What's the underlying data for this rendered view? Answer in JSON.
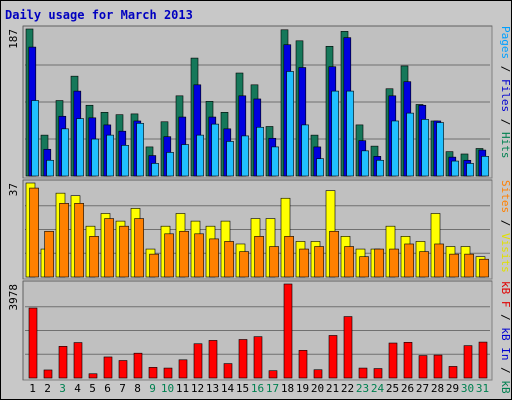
{
  "title": "Daily usage for March 2013",
  "chart_data": [
    {
      "type": "bar",
      "panel": "top",
      "max_label": "187",
      "ylim": [
        0,
        187
      ],
      "grid": true,
      "categories": [
        "1",
        "2",
        "3",
        "4",
        "5",
        "6",
        "7",
        "8",
        "9",
        "10",
        "11",
        "12",
        "13",
        "14",
        "15",
        "16",
        "17",
        "18",
        "19",
        "20",
        "21",
        "22",
        "23",
        "24",
        "25",
        "26",
        "27",
        "28",
        "29",
        "30",
        "31"
      ],
      "weekend_days": [
        "3",
        "9",
        "10",
        "16",
        "17",
        "23",
        "24",
        "30",
        "31"
      ],
      "side_labels": [
        {
          "text": "Pages",
          "color": "#00a0ff"
        },
        {
          "text": " / ",
          "color": "#000000"
        },
        {
          "text": "Files",
          "color": "#0000d0"
        },
        {
          "text": " / ",
          "color": "#000000"
        },
        {
          "text": "Hits",
          "color": "#008050"
        }
      ],
      "series": [
        {
          "name": "Hits",
          "color": "#16785a",
          "values": [
            187,
            52,
            96,
            127,
            90,
            81,
            78,
            79,
            37,
            69,
            102,
            150,
            95,
            81,
            131,
            116,
            63,
            186,
            172,
            52,
            165,
            184,
            65,
            38,
            111,
            140,
            91,
            70,
            31,
            28,
            35
          ]
        },
        {
          "name": "Files",
          "color": "#0000e0",
          "values": [
            164,
            34,
            76,
            108,
            74,
            65,
            57,
            70,
            26,
            50,
            75,
            116,
            75,
            60,
            102,
            98,
            48,
            167,
            138,
            37,
            139,
            176,
            45,
            25,
            102,
            120,
            90,
            70,
            24,
            20,
            33
          ]
        },
        {
          "name": "Pages",
          "color": "#20c0ff",
          "values": [
            96,
            20,
            60,
            73,
            47,
            52,
            39,
            67,
            16,
            30,
            40,
            52,
            66,
            44,
            51,
            62,
            37,
            133,
            65,
            22,
            108,
            108,
            32,
            20,
            70,
            80,
            72,
            68,
            19,
            16,
            25
          ]
        }
      ]
    },
    {
      "type": "bar",
      "panel": "middle",
      "max_label": "37",
      "ylim": [
        0,
        37
      ],
      "grid": true,
      "side_labels": [
        {
          "text": "Sites",
          "color": "#ff8000"
        },
        {
          "text": " / ",
          "color": "#000000"
        },
        {
          "text": "Visits",
          "color": "#e0e000"
        }
      ],
      "series": [
        {
          "name": "Visits",
          "color": "#ffff00",
          "values": [
            37,
            11,
            33,
            32,
            20,
            25,
            22,
            27,
            11,
            20,
            25,
            22,
            20,
            22,
            13,
            23,
            23,
            31,
            14,
            14,
            34,
            16,
            11,
            11,
            20,
            16,
            14,
            25,
            12,
            12,
            8
          ]
        },
        {
          "name": "Sites",
          "color": "#ff8000",
          "values": [
            35,
            18,
            29,
            29,
            16,
            23,
            20,
            23,
            9,
            17,
            18,
            17,
            15,
            14,
            10,
            16,
            12,
            16,
            11,
            12,
            18,
            12,
            8,
            11,
            11,
            13,
            10,
            13,
            9,
            9,
            7
          ]
        }
      ]
    },
    {
      "type": "bar",
      "panel": "bottom",
      "max_label": "3978",
      "ylim": [
        0,
        3978
      ],
      "grid": true,
      "side_labels": [
        {
          "text": "kB F",
          "color": "#e00000"
        },
        {
          "text": " / ",
          "color": "#000000"
        },
        {
          "text": "kB In",
          "color": "#0000d0"
        },
        {
          "text": " / ",
          "color": "#000000"
        },
        {
          "text": "kB Out",
          "color": "#008050"
        }
      ],
      "series": [
        {
          "name": "kB F",
          "color": "#ff0000",
          "values": [
            2960,
            340,
            1340,
            1500,
            180,
            890,
            740,
            1050,
            450,
            420,
            770,
            1450,
            1590,
            610,
            1630,
            1750,
            310,
            3978,
            1170,
            350,
            1800,
            2600,
            420,
            400,
            1480,
            1510,
            950,
            970,
            490,
            1370,
            1520
          ]
        }
      ]
    }
  ]
}
